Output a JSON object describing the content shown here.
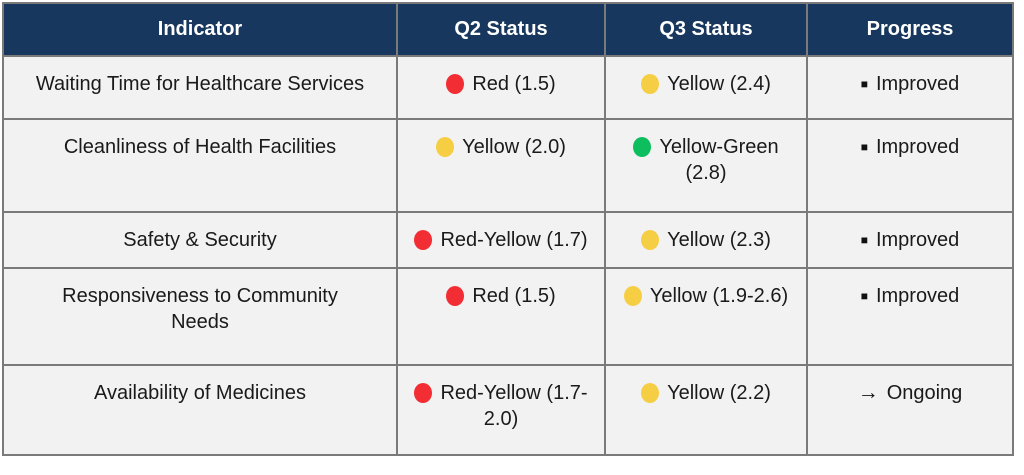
{
  "colors": {
    "header_bg": "#18375E",
    "header_text": "#FFFFFF",
    "row_bg": "#F2F2F2",
    "border": "#7A7A7A",
    "text": "#1A1A1A",
    "red": "#F22D33",
    "yellow": "#F6CE44",
    "green": "#0DBE5E",
    "black": "#111111"
  },
  "glyphs": {
    "black-square": "■",
    "right-arrow": "→"
  },
  "table": {
    "columns": [
      "Indicator",
      "Q2 Status",
      "Q3 Status",
      "Progress"
    ],
    "rows": [
      {
        "indicator": "Waiting Time for Healthcare Services",
        "q2": {
          "dot": "red",
          "label": "Red (1.5)"
        },
        "q3": {
          "dot": "yellow",
          "label": "Yellow (2.4)"
        },
        "progress": {
          "icon": "black-square",
          "label": "Improved"
        }
      },
      {
        "indicator": "Cleanliness of Health Facilities",
        "q2": {
          "dot": "yellow",
          "label": "Yellow (2.0)"
        },
        "q3": {
          "dot": "green",
          "label": "Yellow-Green\n(2.8)"
        },
        "progress": {
          "icon": "black-square",
          "label": "Improved"
        }
      },
      {
        "indicator": "Safety & Security",
        "q2": {
          "dot": "red",
          "label": "Red-Yellow (1.7)"
        },
        "q3": {
          "dot": "yellow",
          "label": "Yellow (2.3)"
        },
        "progress": {
          "icon": "black-square",
          "label": "Improved"
        }
      },
      {
        "indicator": "Responsiveness to Community\nNeeds",
        "q2": {
          "dot": "red",
          "label": "Red (1.5)"
        },
        "q3": {
          "dot": "yellow",
          "label": "Yellow (1.9-2.6)"
        },
        "progress": {
          "icon": "black-square",
          "label": "Improved"
        }
      },
      {
        "indicator": "Availability of Medicines",
        "q2": {
          "dot": "red",
          "label": "Red-Yellow (1.7-\n2.0)"
        },
        "q3": {
          "dot": "yellow",
          "label": "Yellow (2.2)"
        },
        "progress": {
          "icon": "right-arrow",
          "label": "Ongoing"
        }
      }
    ]
  },
  "chart_data": {
    "type": "table",
    "columns": [
      "Indicator",
      "Q2 Status",
      "Q3 Status",
      "Progress"
    ],
    "rows": [
      [
        "Waiting Time for Healthcare Services",
        "Red (1.5)",
        "Yellow (2.4)",
        "Improved"
      ],
      [
        "Cleanliness of Health Facilities",
        "Yellow (2.0)",
        "Yellow-Green (2.8)",
        "Improved"
      ],
      [
        "Safety & Security",
        "Red-Yellow (1.7)",
        "Yellow (2.3)",
        "Improved"
      ],
      [
        "Responsiveness to Community Needs",
        "Red (1.5)",
        "Yellow (1.9-2.6)",
        "Improved"
      ],
      [
        "Availability of Medicines",
        "Red-Yellow (1.7-2.0)",
        "Yellow (2.2)",
        "Ongoing"
      ]
    ],
    "q2_status_colors": [
      "red",
      "yellow",
      "red",
      "red",
      "red"
    ],
    "q3_status_colors": [
      "yellow",
      "green",
      "yellow",
      "yellow",
      "yellow"
    ],
    "legend_position": "none",
    "grid": true
  }
}
